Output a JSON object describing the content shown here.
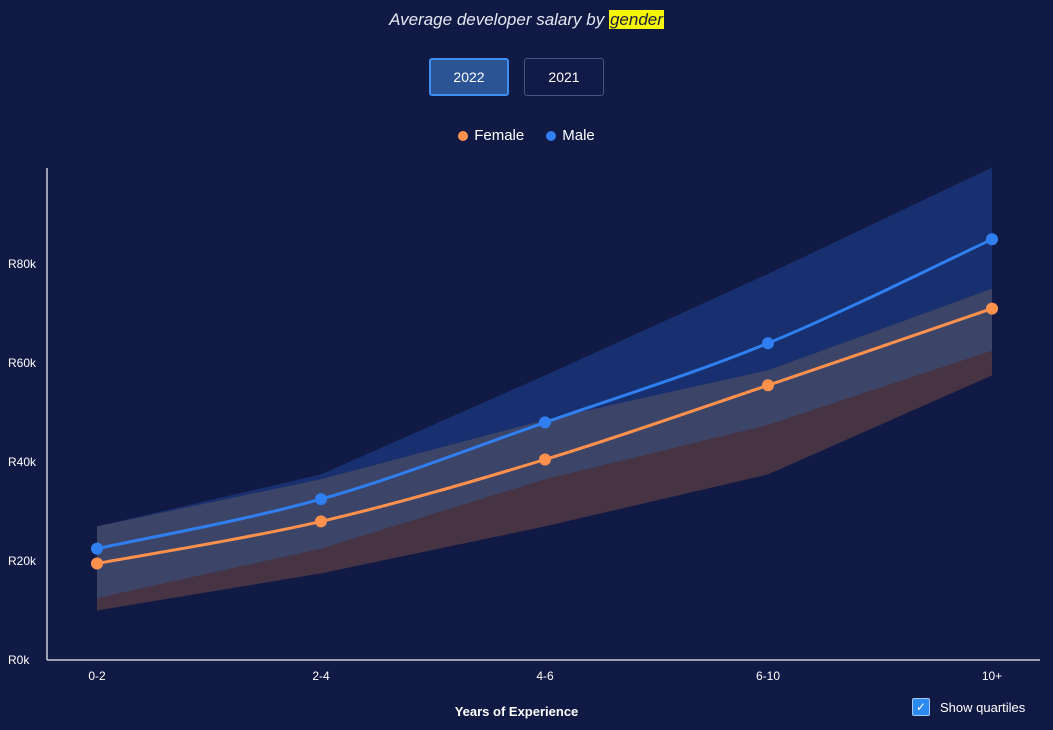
{
  "header": {
    "title_prefix": "Average developer salary by",
    "title_highlight": "gender"
  },
  "year_tabs": {
    "active": "2022",
    "inactive": "2021"
  },
  "legend": {
    "female_label": "Female",
    "male_label": "Male"
  },
  "controls": {
    "show_quartiles_label": "Show quartiles",
    "show_quartiles_checked": true,
    "check_glyph": "✓"
  },
  "colors": {
    "background": "#111a45",
    "female": "#ff914d",
    "male": "#2f7ff0",
    "male_band": "#18306f",
    "female_band": "#463444",
    "overlap_band": "#3c4568",
    "axis": "#c9cbd6"
  },
  "chart_data": {
    "type": "line",
    "title": "Average developer salary by gender",
    "xlabel": "Years of Experience",
    "ylabel": "",
    "categories": [
      "0-2",
      "2-4",
      "4-6",
      "6-10",
      "10+"
    ],
    "ylim": [
      0,
      100000
    ],
    "y_ticks": [
      0,
      20000,
      40000,
      60000,
      80000
    ],
    "y_tick_labels": [
      "R0k",
      "R20k",
      "R40k",
      "R60k",
      "R80k"
    ],
    "series": [
      {
        "name": "Female",
        "values": [
          19500,
          28000,
          40500,
          55500,
          71000
        ],
        "q1": [
          10000,
          17500,
          27000,
          37500,
          57500
        ],
        "q3": [
          27000,
          36500,
          48500,
          58500,
          75000
        ]
      },
      {
        "name": "Male",
        "values": [
          22500,
          32500,
          48000,
          64000,
          85000
        ],
        "q1": [
          12500,
          22500,
          36500,
          47500,
          62500
        ],
        "q3": [
          27000,
          37500,
          57500,
          78000,
          99500
        ]
      }
    ],
    "legend_position": "top-center",
    "grid": false
  }
}
